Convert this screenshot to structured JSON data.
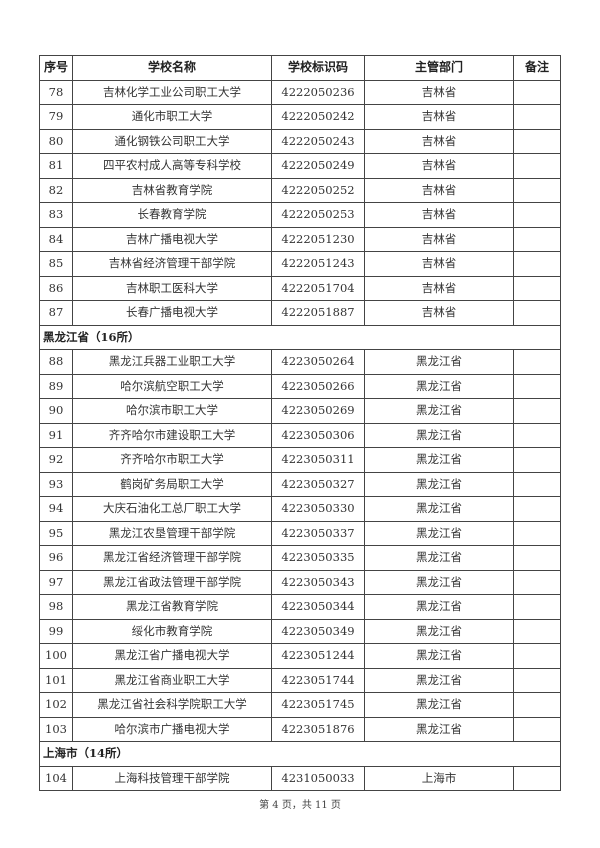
{
  "headers": [
    "序号",
    "学校名称",
    "学校标识码",
    "主管部门",
    "备注"
  ],
  "sections": [
    {
      "group": null,
      "rows": [
        [
          "78",
          "吉林化学工业公司职工大学",
          "4222050236",
          "吉林省",
          ""
        ],
        [
          "79",
          "通化市职工大学",
          "4222050242",
          "吉林省",
          ""
        ],
        [
          "80",
          "通化钢铁公司职工大学",
          "4222050243",
          "吉林省",
          ""
        ],
        [
          "81",
          "四平农村成人高等专科学校",
          "4222050249",
          "吉林省",
          ""
        ],
        [
          "82",
          "吉林省教育学院",
          "4222050252",
          "吉林省",
          ""
        ],
        [
          "83",
          "长春教育学院",
          "4222050253",
          "吉林省",
          ""
        ],
        [
          "84",
          "吉林广播电视大学",
          "4222051230",
          "吉林省",
          ""
        ],
        [
          "85",
          "吉林省经济管理干部学院",
          "4222051243",
          "吉林省",
          ""
        ],
        [
          "86",
          "吉林职工医科大学",
          "4222051704",
          "吉林省",
          ""
        ],
        [
          "87",
          "长春广播电视大学",
          "4222051887",
          "吉林省",
          ""
        ]
      ]
    },
    {
      "group": "黑龙江省（16所）",
      "rows": [
        [
          "88",
          "黑龙江兵器工业职工大学",
          "4223050264",
          "黑龙江省",
          ""
        ],
        [
          "89",
          "哈尔滨航空职工大学",
          "4223050266",
          "黑龙江省",
          ""
        ],
        [
          "90",
          "哈尔滨市职工大学",
          "4223050269",
          "黑龙江省",
          ""
        ],
        [
          "91",
          "齐齐哈尔市建设职工大学",
          "4223050306",
          "黑龙江省",
          ""
        ],
        [
          "92",
          "齐齐哈尔市职工大学",
          "4223050311",
          "黑龙江省",
          ""
        ],
        [
          "93",
          "鹤岗矿务局职工大学",
          "4223050327",
          "黑龙江省",
          ""
        ],
        [
          "94",
          "大庆石油化工总厂职工大学",
          "4223050330",
          "黑龙江省",
          ""
        ],
        [
          "95",
          "黑龙江农垦管理干部学院",
          "4223050337",
          "黑龙江省",
          ""
        ],
        [
          "96",
          "黑龙江省经济管理干部学院",
          "4223050335",
          "黑龙江省",
          ""
        ],
        [
          "97",
          "黑龙江省政法管理干部学院",
          "4223050343",
          "黑龙江省",
          ""
        ],
        [
          "98",
          "黑龙江省教育学院",
          "4223050344",
          "黑龙江省",
          ""
        ],
        [
          "99",
          "绥化市教育学院",
          "4223050349",
          "黑龙江省",
          ""
        ],
        [
          "100",
          "黑龙江省广播电视大学",
          "4223051244",
          "黑龙江省",
          ""
        ],
        [
          "101",
          "黑龙江省商业职工大学",
          "4223051744",
          "黑龙江省",
          ""
        ],
        [
          "102",
          "黑龙江省社会科学院职工大学",
          "4223051745",
          "黑龙江省",
          ""
        ],
        [
          "103",
          "哈尔滨市广播电视大学",
          "4223051876",
          "黑龙江省",
          ""
        ]
      ]
    },
    {
      "group": "上海市（14所）",
      "rows": [
        [
          "104",
          "上海科技管理干部学院",
          "4231050033",
          "上海市",
          ""
        ]
      ]
    }
  ],
  "footer": "第 4 页，共 11 页"
}
